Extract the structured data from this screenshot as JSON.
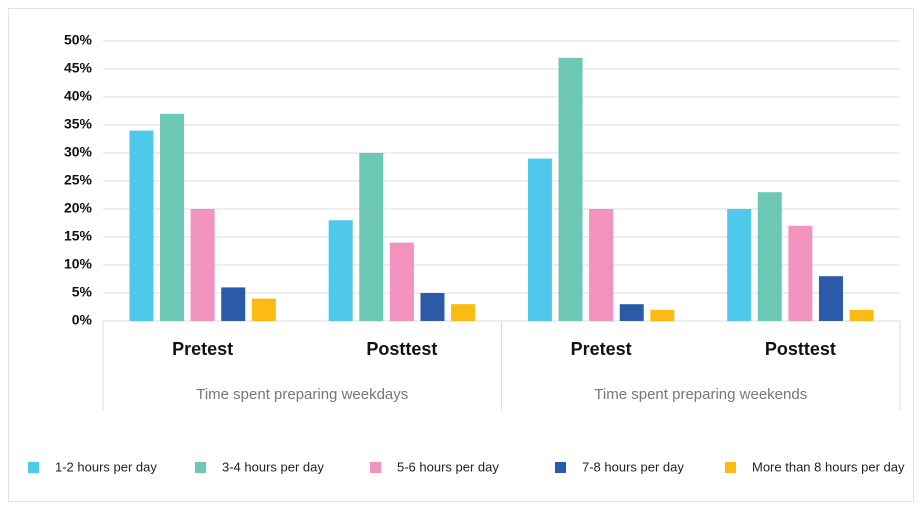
{
  "chart_data": {
    "type": "bar",
    "groups": [
      {
        "name": "Time spent preparing weekdays",
        "categories": [
          "Pretest",
          "Posttest"
        ]
      },
      {
        "name": "Time spent preparing weekends",
        "categories": [
          "Pretest",
          "Posttest"
        ]
      }
    ],
    "series": [
      {
        "name": "1-2 hours per day",
        "color": "#4ec9ec",
        "values": [
          34,
          18,
          29,
          20
        ]
      },
      {
        "name": "3-4 hours per day",
        "color": "#6cc7b4",
        "values": [
          37,
          30,
          47,
          23
        ]
      },
      {
        "name": "5-6 hours per day",
        "color": "#f292bf",
        "values": [
          20,
          14,
          20,
          17
        ]
      },
      {
        "name": "7-8 hours per day",
        "color": "#2b5ba8",
        "values": [
          6,
          5,
          3,
          8
        ]
      },
      {
        "name": "More than 8 hours per day",
        "color": "#fbbb14",
        "values": [
          4,
          3,
          2,
          2
        ]
      }
    ],
    "ylim": [
      0,
      50
    ],
    "yticks": [
      {
        "value": 0,
        "label": "0%"
      },
      {
        "value": 5,
        "label": "5%"
      },
      {
        "value": 10,
        "label": "10%"
      },
      {
        "value": 15,
        "label": "15%"
      },
      {
        "value": 20,
        "label": "20%"
      },
      {
        "value": 25,
        "label": "25%"
      },
      {
        "value": 30,
        "label": "30%"
      },
      {
        "value": 35,
        "label": "35%"
      },
      {
        "value": 40,
        "label": "40%"
      },
      {
        "value": 45,
        "label": "45%"
      },
      {
        "value": 50,
        "label": "50%"
      }
    ],
    "grid": true,
    "legend": "bottom"
  }
}
